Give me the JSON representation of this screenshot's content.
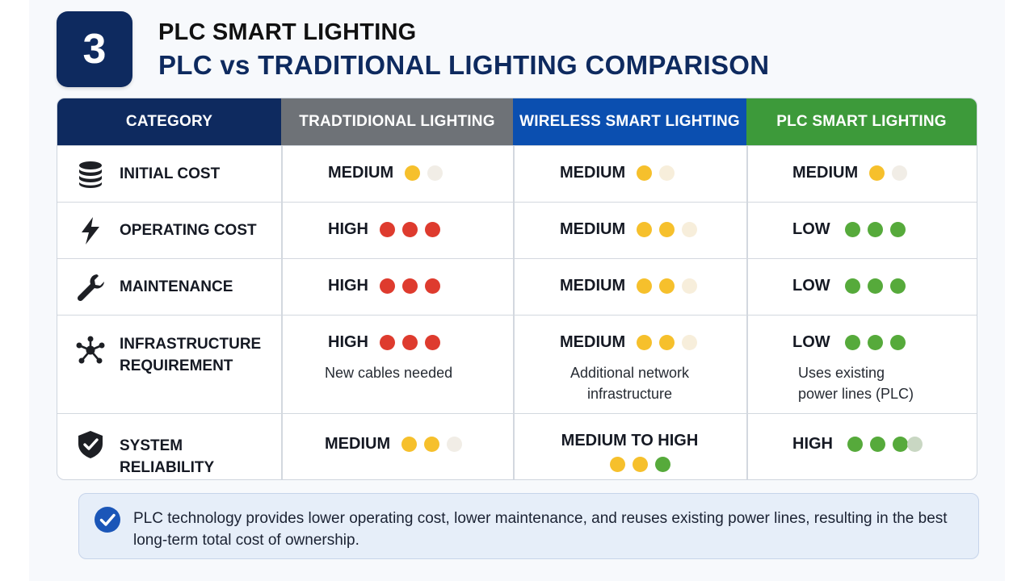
{
  "header": {
    "badge_number": "3",
    "title": "PLC SMART LIGHTING",
    "subtitle": "PLC vs TRADITIONAL LIGHTING COMPARISON"
  },
  "table": {
    "columns": [
      "CATEGORY",
      "TRADTIDIONAL LIGHTING",
      "WIRELESS SMART LIGHTING",
      "PLC SMART LIGHTING"
    ],
    "rows": [
      {
        "category": "INITIAL COST",
        "icon": "coin-stack-icon",
        "traditional": {
          "rating": "MEDIUM",
          "note": ""
        },
        "wireless": {
          "rating": "MEDIUM",
          "note": ""
        },
        "plc": {
          "rating": "MEDIUM",
          "note": ""
        }
      },
      {
        "category": "OPERATING COST",
        "icon": "lightning-bolt-icon",
        "traditional": {
          "rating": "HIGH",
          "note": ""
        },
        "wireless": {
          "rating": "MEDIUM",
          "note": ""
        },
        "plc": {
          "rating": "LOW",
          "note": ""
        }
      },
      {
        "category": "MAINTENANCE",
        "icon": "wrench-icon",
        "traditional": {
          "rating": "HIGH",
          "note": ""
        },
        "wireless": {
          "rating": "MEDIUM",
          "note": ""
        },
        "plc": {
          "rating": "LOW",
          "note": ""
        }
      },
      {
        "category": "INFRASTRUCTURE REQUIREMENT",
        "category_line1": "INFRASTRUCTURE",
        "category_line2": "REQUIREMENT",
        "icon": "network-hub-icon",
        "traditional": {
          "rating": "HIGH",
          "note": "New cables needed"
        },
        "wireless": {
          "rating": "MEDIUM",
          "note_line1": "Additional network",
          "note_line2": "infrastructure"
        },
        "plc": {
          "rating": "LOW",
          "note_line1": "Uses existing",
          "note_line2": "power lines (PLC)"
        }
      },
      {
        "category": "SYSTEM RELIABILITY",
        "icon": "shield-check-icon",
        "traditional": {
          "rating": "MEDIUM",
          "note": ""
        },
        "wireless": {
          "rating": "MEDIUM TO HIGH",
          "note": ""
        },
        "plc": {
          "rating": "HIGH",
          "note": ""
        }
      }
    ],
    "dot_colors": {
      "red": "#de3b2e",
      "yellow": "#f6c02c",
      "green": "#56aa3b",
      "empty_yellow": "#f7eedb",
      "empty_green": "#c9d7c3",
      "empty_neutral": "#f1ede6"
    }
  },
  "callout": {
    "icon": "check-circle-icon",
    "text": "PLC technology provides lower operating cost, lower maintenance, and reuses existing power lines, resulting in the best long-term total cost of ownership."
  },
  "colors": {
    "navy": "#0e2a5f",
    "gray_header": "#6e7277",
    "blue_header": "#0b4fb0",
    "green_header": "#3d9a3a"
  }
}
